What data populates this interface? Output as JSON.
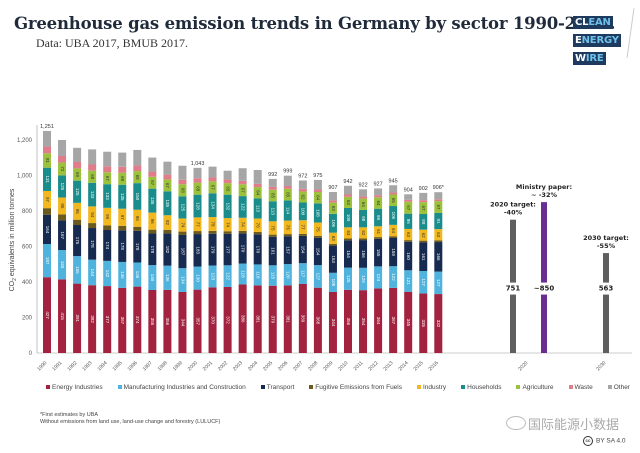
{
  "header": {
    "title": "Greenhouse gas emission trends in Germany by sector 1990-2016.",
    "subtitle": "Data: UBA 2017, BMUB 2017.",
    "logo_lines": [
      "CL",
      "EAN",
      "E",
      "NERGY",
      "W",
      "IRE"
    ]
  },
  "chart_data": {
    "type": "bar",
    "stacked": true,
    "title": "Greenhouse gas emission trends in Germany by sector 1990-2016.",
    "xlabel": "",
    "ylabel": "CO2 equivalents in million tonnes",
    "ylim": [
      0,
      1250
    ],
    "yticks": [
      0,
      200,
      400,
      600,
      800,
      1000,
      1200
    ],
    "ytick_labels": [
      "0",
      "200",
      "400",
      "600",
      "800",
      "1,000",
      "1,200"
    ],
    "grid": false,
    "legend_position": "bottom",
    "categories": [
      "1990",
      "1991",
      "1992",
      "1993",
      "1994",
      "1995",
      "1996",
      "1997",
      "1998",
      "1999",
      "2000",
      "2001",
      "2002",
      "2003",
      "2004",
      "2005",
      "2006",
      "2007",
      "2008",
      "2009",
      "2010",
      "2011",
      "2012",
      "2013",
      "2014",
      "2015",
      "2016"
    ],
    "series": [
      {
        "name": "Energy Industries",
        "color": "#a3223f",
        "values": [
          427,
          415,
          391,
          382,
          377,
          367,
          374,
          355,
          356,
          344,
          357,
          370,
          372,
          386,
          381,
          379,
          381,
          389,
          368,
          344,
          356,
          354,
          364,
          367,
          345,
          335,
          332
        ]
      },
      {
        "name": "Manufacturing Industries and Construction",
        "color": "#4fb3de",
        "values": [
          187,
          165,
          155,
          144,
          142,
          146,
          136,
          140,
          136,
          134,
          130,
          123,
          122,
          118,
          118,
          115,
          120,
          117,
          127,
          108,
          125,
          126,
          124,
          122,
          121,
          127,
          127
        ]
      },
      {
        "name": "Transport",
        "color": "#172a4f",
        "values": [
          164,
          167,
          175,
          178,
          174,
          178,
          178,
          178,
          182,
          187,
          183,
          179,
          177,
          170,
          170,
          161,
          157,
          154,
          154,
          153,
          154,
          156,
          155,
          159,
          160,
          161,
          166
        ]
      },
      {
        "name": "Fugitive Emissions from Fuels",
        "color": "#6b5a1e",
        "values": [
          38,
          34,
          30,
          28,
          26,
          25,
          23,
          22,
          20,
          19,
          17,
          16,
          15,
          14,
          13,
          12,
          12,
          11,
          11,
          10,
          10,
          10,
          10,
          10,
          10,
          10,
          10
        ]
      },
      {
        "name": "Industry",
        "color": "#f2b81f",
        "values": [
          97,
          95,
          95,
          94,
          99,
          97,
          96,
          96,
          82,
          74,
          77,
          78,
          74,
          74,
          76,
          75,
          76,
          77,
          75,
          63,
          63,
          62,
          61,
          64,
          63,
          62,
          63
        ]
      },
      {
        "name": "Households",
        "color": "#1a8c8b",
        "values": [
          131,
          125,
          125,
          133,
          133,
          135,
          150,
          135,
          135,
          125,
          128,
          134,
          132,
          122,
          113,
          113,
          114,
          100,
          108,
          106,
          109,
          98,
          99,
          106,
          86,
          88,
          91
        ]
      },
      {
        "name": "Agriculture",
        "color": "#9cc23d",
        "values": [
          81,
          72,
          69,
          68,
          67,
          68,
          68,
          67,
          67,
          68,
          68,
          67,
          65,
          67,
          64,
          65,
          65,
          62,
          64,
          63,
          63,
          64,
          64,
          65,
          67,
          67,
          67
        ]
      },
      {
        "name": "Waste",
        "color": "#e07d8a",
        "values": [
          38,
          37,
          36,
          35,
          34,
          33,
          31,
          29,
          27,
          25,
          24,
          22,
          20,
          19,
          18,
          17,
          16,
          15,
          14,
          13,
          13,
          12,
          11,
          11,
          11,
          11,
          10
        ]
      },
      {
        "name": "Other",
        "color": "#a6a6a6",
        "values": [
          88,
          90,
          80,
          85,
          82,
          80,
          88,
          79,
          73,
          79,
          59,
          61,
          50,
          71,
          78,
          44,
          58,
          47,
          54,
          47,
          49,
          40,
          39,
          41,
          31,
          41,
          40
        ]
      }
    ],
    "totals": [
      "1,251",
      "",
      "",
      "",
      "",
      "",
      "",
      "",
      "",
      "",
      "1,043",
      "",
      "",
      "",
      "",
      "992",
      "999",
      "972",
      "975",
      "907",
      "942",
      "922",
      "927",
      "945",
      "904",
      "902",
      "906*"
    ],
    "targets": [
      {
        "label": "2020 target:\n-40%",
        "label_line1": "2020 target:",
        "label_line2": "-40%",
        "value": 751,
        "value_label": "751",
        "color": "#5f5f5f",
        "category": "2020"
      },
      {
        "label": "Ministry paper:\n~ -32%",
        "label_line1": "Ministry paper:",
        "label_line2": "~ -32%",
        "value": 850,
        "value_label": "~850",
        "color": "#6a2d91",
        "category": "2020"
      },
      {
        "label": "2030 target:\n-55%",
        "label_line1": "2030 target:",
        "label_line2": "-55%",
        "value": 563,
        "value_label": "563",
        "color": "#5f5f5f",
        "category": "2030"
      }
    ],
    "target_categories": [
      "2020",
      "2030"
    ]
  },
  "footnotes": [
    "*First estimates by UBA",
    "Without emissions from land use, land-use change and forestry (LULUCF)"
  ],
  "watermark": "国际能源小数据",
  "license": {
    "icon": "cc-icon",
    "cc_glyph": "cc",
    "text": "BY SA 4.0"
  }
}
